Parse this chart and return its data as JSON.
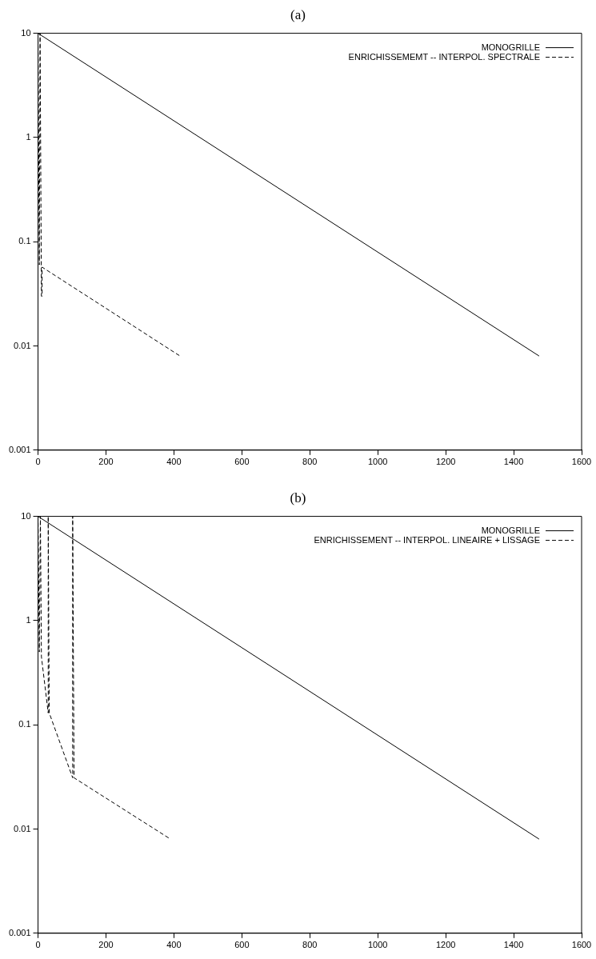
{
  "chart_data": [
    {
      "type": "line",
      "title": "(a)",
      "log": "y",
      "xlim": [
        0,
        1600
      ],
      "xticks": [
        0,
        200,
        400,
        600,
        800,
        1000,
        1200,
        1400,
        1600
      ],
      "ylim": [
        0.001,
        10
      ],
      "yticks": [
        0.001,
        0.01,
        0.1,
        1,
        10
      ],
      "grid": false,
      "legend": "top right",
      "marker": "none",
      "series": [
        {
          "name": "MONOGRILLE",
          "color": "#000000",
          "line_style": "solid",
          "x": [
            0,
            1475
          ],
          "values": [
            10,
            0.008
          ]
        },
        {
          "name": "ENRICHISSEMEMT -- INTERPOL. SPECTRALE",
          "color": "#000000",
          "line_style": "dashed",
          "x": [
            0,
            4,
            6,
            10,
            12,
            12,
            418
          ],
          "values": [
            10,
            0.06,
            10,
            0.03,
            0.03,
            0.057,
            0.008
          ]
        }
      ]
    },
    {
      "type": "line",
      "title": "(b)",
      "log": "y",
      "xlim": [
        0,
        1600
      ],
      "xticks": [
        0,
        200,
        400,
        600,
        800,
        1000,
        1200,
        1400,
        1600
      ],
      "ylim": [
        0.001,
        10
      ],
      "yticks": [
        0.001,
        0.01,
        0.1,
        1,
        10
      ],
      "grid": false,
      "legend": "top right",
      "marker": "none",
      "series": [
        {
          "name": "MONOGRILLE",
          "color": "#000000",
          "line_style": "solid",
          "x": [
            0,
            1475
          ],
          "values": [
            10,
            0.008
          ]
        },
        {
          "name": "ENRICHISSEMENT -- INTERPOL. LINEAIRE + LISSAGE",
          "color": "#000000",
          "line_style": "dashed",
          "x": [
            0,
            4,
            7,
            10,
            30,
            30,
            33,
            102,
            102,
            106,
            390
          ],
          "values": [
            10,
            0.5,
            10,
            0.45,
            0.13,
            10,
            0.13,
            0.031,
            10,
            0.031,
            0.008
          ]
        }
      ]
    }
  ]
}
